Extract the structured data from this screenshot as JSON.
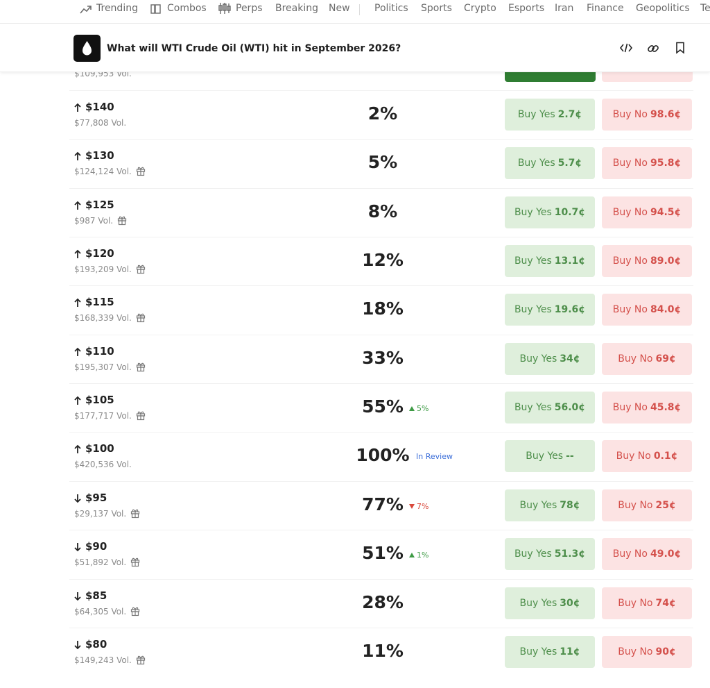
{
  "nav": {
    "items": [
      "Trending",
      "Combos",
      "Perps",
      "Breaking",
      "New",
      "Politics",
      "Sports",
      "Crypto",
      "Esports",
      "Iran",
      "Finance",
      "Geopolitics",
      "Te"
    ]
  },
  "header": {
    "title": "What will WTI Crude Oil (WTI) hit in September 2026?"
  },
  "partial_row": {
    "volume": "$109,953 Vol."
  },
  "buttons": {
    "yes": "Buy Yes",
    "no": "Buy No"
  },
  "rows": [
    {
      "direction": "up",
      "label": "$140",
      "volume": "$77,808 Vol.",
      "gift": false,
      "chance": "2%",
      "yes_price": "2.7¢",
      "no_price": "98.6¢"
    },
    {
      "direction": "up",
      "label": "$130",
      "volume": "$124,124 Vol.",
      "gift": true,
      "chance": "5%",
      "yes_price": "5.7¢",
      "no_price": "95.8¢"
    },
    {
      "direction": "up",
      "label": "$125",
      "volume": "$987 Vol.",
      "gift": true,
      "chance": "8%",
      "yes_price": "10.7¢",
      "no_price": "94.5¢"
    },
    {
      "direction": "up",
      "label": "$120",
      "volume": "$193,209 Vol.",
      "gift": true,
      "chance": "12%",
      "yes_price": "13.1¢",
      "no_price": "89.0¢"
    },
    {
      "direction": "up",
      "label": "$115",
      "volume": "$168,339 Vol.",
      "gift": true,
      "chance": "18%",
      "yes_price": "19.6¢",
      "no_price": "84.0¢"
    },
    {
      "direction": "up",
      "label": "$110",
      "volume": "$195,307 Vol.",
      "gift": true,
      "chance": "33%",
      "yes_price": "34¢",
      "no_price": "69¢"
    },
    {
      "direction": "up",
      "label": "$105",
      "volume": "$177,717 Vol.",
      "gift": true,
      "chance": "55%",
      "change": {
        "trend": "up",
        "text": "5%"
      },
      "yes_price": "56.0¢",
      "no_price": "45.8¢"
    },
    {
      "direction": "up",
      "label": "$100",
      "volume": "$420,536 Vol.",
      "gift": false,
      "chance": "100%",
      "status": "In Review",
      "yes_price": "--",
      "no_price": "0.1¢"
    },
    {
      "direction": "down",
      "label": "$95",
      "volume": "$29,137 Vol.",
      "gift": true,
      "chance": "77%",
      "change": {
        "trend": "down",
        "text": "7%"
      },
      "yes_price": "78¢",
      "no_price": "25¢"
    },
    {
      "direction": "down",
      "label": "$90",
      "volume": "$51,892 Vol.",
      "gift": true,
      "chance": "51%",
      "change": {
        "trend": "up",
        "text": "1%"
      },
      "yes_price": "51.3¢",
      "no_price": "49.0¢"
    },
    {
      "direction": "down",
      "label": "$85",
      "volume": "$64,305 Vol.",
      "gift": true,
      "chance": "28%",
      "yes_price": "30¢",
      "no_price": "74¢"
    },
    {
      "direction": "down",
      "label": "$80",
      "volume": "$149,243 Vol.",
      "gift": true,
      "chance": "11%",
      "yes_price": "11¢",
      "no_price": "90¢"
    }
  ]
}
